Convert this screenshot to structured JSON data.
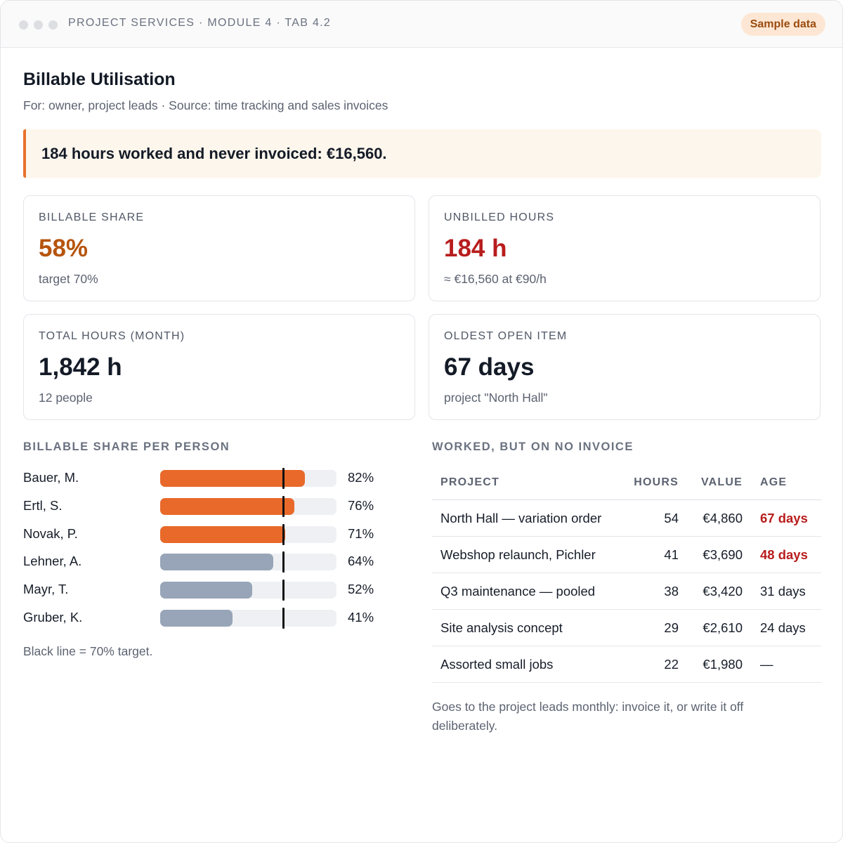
{
  "window": {
    "breadcrumb": "PROJECT SERVICES · MODULE 4 · TAB 4.2",
    "badge": "Sample data"
  },
  "header": {
    "title": "Billable Utilisation",
    "subtitle": "For: owner, project leads · Source: time tracking and sales invoices"
  },
  "alert": {
    "text": "184 hours worked and never invoiced: €16,560."
  },
  "kpis": [
    {
      "label": "BILLABLE SHARE",
      "value": "58%",
      "note": "target 70%"
    },
    {
      "label": "UNBILLED HOURS",
      "value": "184 h",
      "note": "≈ €16,560 at €90/h"
    },
    {
      "label": "TOTAL HOURS (MONTH)",
      "value": "1,842 h",
      "note": "12 people"
    },
    {
      "label": "OLDEST OPEN ITEM",
      "value": "67 days",
      "note": "project \"North Hall\""
    }
  ],
  "billable_chart": {
    "title": "BILLABLE SHARE PER PERSON",
    "target_percent": 70,
    "note": "Black line = 70% target.",
    "people": [
      {
        "name": "Bauer, M.",
        "percent": 82,
        "label": "82%"
      },
      {
        "name": "Ertl, S.",
        "percent": 76,
        "label": "76%"
      },
      {
        "name": "Novak, P.",
        "percent": 71,
        "label": "71%"
      },
      {
        "name": "Lehner, A.",
        "percent": 64,
        "label": "64%"
      },
      {
        "name": "Mayr, T.",
        "percent": 52,
        "label": "52%"
      },
      {
        "name": "Gruber, K.",
        "percent": 41,
        "label": "41%"
      }
    ]
  },
  "unbilled_table": {
    "title": "WORKED, BUT ON NO INVOICE",
    "headers": {
      "project": "PROJECT",
      "hours": "HOURS",
      "value": "VALUE",
      "age": "AGE"
    },
    "rows": [
      {
        "project": "North Hall — variation order",
        "hours": "54",
        "value": "€4,860",
        "age": "67 days",
        "overdue": true
      },
      {
        "project": "Webshop relaunch, Pichler",
        "hours": "41",
        "value": "€3,690",
        "age": "48 days",
        "overdue": true
      },
      {
        "project": "Q3 maintenance — pooled",
        "hours": "38",
        "value": "€3,420",
        "age": "31 days",
        "overdue": false
      },
      {
        "project": "Site analysis concept",
        "hours": "29",
        "value": "€2,610",
        "age": "24 days",
        "overdue": false
      },
      {
        "project": "Assorted small jobs",
        "hours": "22",
        "value": "€1,980",
        "age": "—",
        "overdue": false
      }
    ],
    "note": "Goes to the project leads monthly: invoice it, or write it off deliberately."
  },
  "colors": {
    "accent_orange": "#e8692a",
    "below_target_bar": "#98a5b8",
    "alert_red": "#b81d1d",
    "badge_bg": "#fde7d4"
  }
}
